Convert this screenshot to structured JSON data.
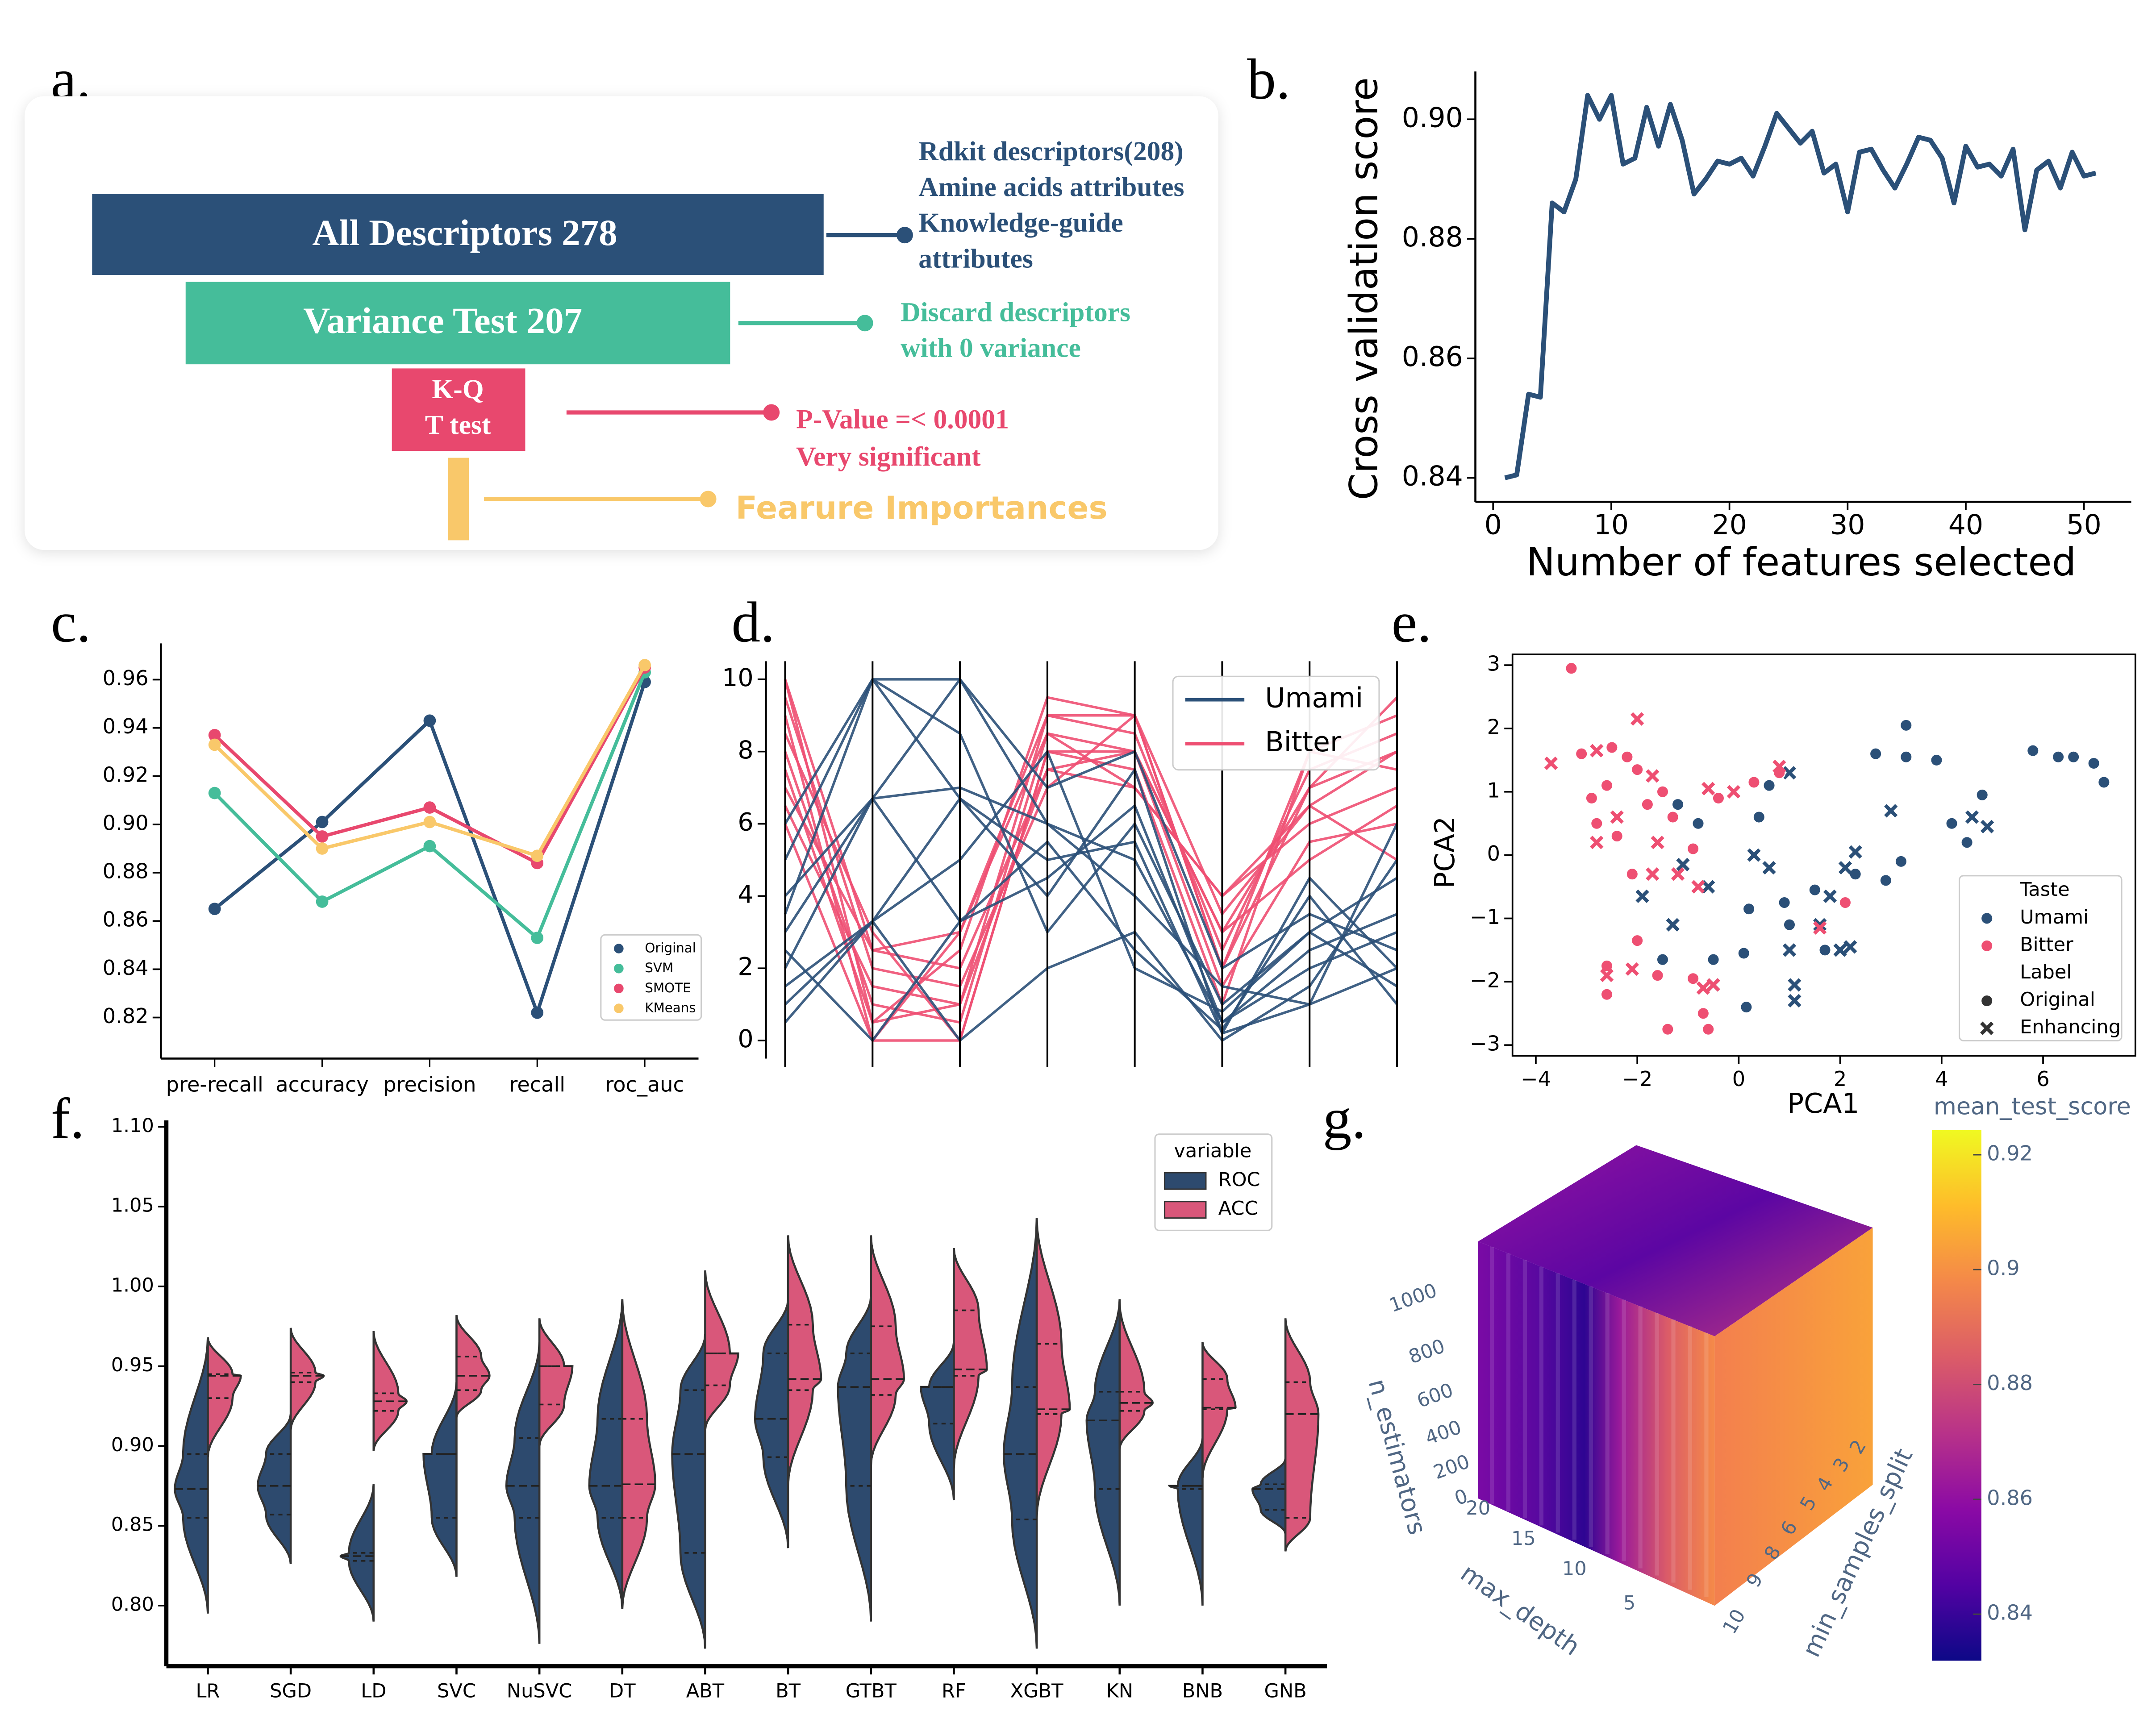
{
  "panel_labels": [
    "a.",
    "b.",
    "c.",
    "d.",
    "e.",
    "f.",
    "g."
  ],
  "diagram": {
    "stages": [
      {
        "label": "All Descriptors 278",
        "notes": [
          "Rdkit descriptors(208)",
          "Amine acids attributes",
          "Knowledge-guide",
          "attributes"
        ]
      },
      {
        "label": "Variance Test 207",
        "notes": [
          "Discard descriptors",
          "with 0 variance"
        ]
      },
      {
        "label_lines": [
          "K-Q",
          "T test"
        ],
        "notes": [
          "P-Value =< 0.0001",
          "Very significant"
        ]
      },
      {
        "notes": [
          "Fearure Importances"
        ]
      }
    ]
  },
  "chart_data": [
    {
      "type": "line",
      "xlabel": "Number of features selected",
      "ylabel": "Cross validation score",
      "color": "#2b5078",
      "x": [
        1,
        2,
        3,
        4,
        5,
        6,
        7,
        8,
        9,
        10,
        11,
        12,
        13,
        14,
        15,
        16,
        17,
        18,
        19,
        20,
        21,
        22,
        23,
        24,
        25,
        26,
        27,
        28,
        29,
        30,
        31,
        32,
        33,
        34,
        35,
        36,
        37,
        38,
        39,
        40,
        41,
        42,
        43,
        44,
        45,
        46,
        47,
        48,
        49,
        50,
        51
      ],
      "values": [
        0.84,
        0.8405,
        0.854,
        0.8535,
        0.886,
        0.8845,
        0.89,
        0.904,
        0.9,
        0.904,
        0.8925,
        0.8935,
        0.902,
        0.8955,
        0.9025,
        0.8965,
        0.8875,
        0.89,
        0.893,
        0.8925,
        0.8935,
        0.8905,
        0.8955,
        0.901,
        0.8985,
        0.896,
        0.898,
        0.891,
        0.8925,
        0.8845,
        0.8945,
        0.895,
        0.8915,
        0.8885,
        0.8925,
        0.897,
        0.8965,
        0.8935,
        0.886,
        0.8955,
        0.892,
        0.8925,
        0.8905,
        0.895,
        0.8815,
        0.8915,
        0.893,
        0.8885,
        0.8945,
        0.8905,
        0.891
      ],
      "xlim": [
        -1.5,
        54
      ],
      "ylim": [
        0.836,
        0.908
      ],
      "xticks": [
        0,
        10,
        20,
        30,
        40,
        50
      ],
      "yticks": [
        0.84,
        0.86,
        0.88,
        {
          "value": 0.9,
          "label": "0.90"
        }
      ]
    },
    {
      "type": "line",
      "categories": [
        "pre-recall",
        "accuracy",
        "precision",
        "recall",
        "roc_auc"
      ],
      "markers": true,
      "legend": "lower right",
      "series": [
        {
          "name": "Original",
          "color": "#2b5078",
          "values": [
            0.865,
            0.901,
            0.943,
            0.822,
            0.959
          ]
        },
        {
          "name": "SVM",
          "color": "#45bd9a",
          "values": [
            0.913,
            0.868,
            0.891,
            0.853,
            0.963
          ]
        },
        {
          "name": "SMOTE",
          "color": "#e8486e",
          "values": [
            0.937,
            0.895,
            0.907,
            0.884,
            0.965
          ]
        },
        {
          "name": "KMeans",
          "color": "#f9c86a",
          "values": [
            0.933,
            0.89,
            0.901,
            0.887,
            0.966
          ]
        }
      ],
      "ylim": [
        0.803,
        0.975
      ],
      "yticks": [
        0.82,
        0.84,
        0.86,
        0.88,
        {
          "value": 0.9,
          "label": "0.90"
        },
        0.92,
        0.94,
        0.96
      ]
    },
    {
      "type": "parallel",
      "categories": [
        null,
        null,
        null,
        null,
        null,
        null,
        null,
        null
      ],
      "legend": "upper right",
      "series": [
        {
          "name": "Umami",
          "color": "#2b5078",
          "values": [
            [
              3,
              6.7,
              10,
              6,
              5,
              0.5,
              2,
              3
            ],
            [
              1,
              3.3,
              6.7,
              4,
              7.5,
              0.2,
              1,
              2
            ],
            [
              5,
              10,
              8.5,
              3,
              6,
              1,
              3,
              4.5
            ],
            [
              2,
              6.7,
              3.3,
              5.5,
              2.5,
              0.3,
              4,
              1
            ],
            [
              0.5,
              3.3,
              0,
              2,
              3,
              0,
              1.5,
              5
            ],
            [
              6,
              10,
              10,
              7,
              8,
              2,
              3.5,
              2.5
            ],
            [
              2.5,
              0,
              3.3,
              4.5,
              6.5,
              0.5,
              2.5,
              3.5
            ],
            [
              4,
              6.7,
              7,
              6,
              4,
              1.5,
              1,
              6
            ],
            [
              1.5,
              3.3,
              5,
              8,
              2,
              0.8,
              3,
              1.5
            ],
            [
              3.5,
              10,
              6.7,
              5,
              5.5,
              0.2,
              4.5,
              2
            ]
          ]
        },
        {
          "name": "Bitter",
          "color": "#ee4f72",
          "values": [
            [
              9,
              0,
              0,
              8,
              8,
              3,
              7,
              8
            ],
            [
              10,
              0.5,
              1,
              9,
              9,
              2,
              8,
              9
            ],
            [
              7,
              2.5,
              2,
              7.5,
              7,
              4,
              6,
              7
            ],
            [
              8,
              1,
              0.5,
              8.5,
              8,
              1.5,
              5.5,
              6
            ],
            [
              6,
              0,
              3,
              9,
              8.5,
              2.5,
              7.5,
              8.5
            ],
            [
              9.5,
              2,
              1.5,
              7,
              9,
              3.5,
              6.5,
              5
            ],
            [
              8.5,
              3,
              0,
              8,
              7.5,
              1,
              8,
              7.5
            ],
            [
              7.5,
              0.5,
              2.5,
              9.5,
              9,
              2,
              7,
              9.5
            ],
            [
              6.5,
              1.5,
              1,
              7.5,
              8,
              3,
              5,
              6.5
            ],
            [
              10,
              2.5,
              3,
              8.5,
              7,
              4,
              6.5,
              8
            ]
          ]
        }
      ],
      "ylim": [
        -0.5,
        10.5
      ],
      "yticks": [
        0,
        2,
        4,
        6,
        8,
        10
      ]
    },
    {
      "type": "scatter",
      "xlabel": "PCA1",
      "ylabel": "PCA2",
      "legend": "lower right",
      "xlim": [
        -4.46,
        7.82
      ],
      "ylim": [
        -3.17,
        3.17
      ],
      "xticks": [
        {
          "value": -4,
          "label": "−4"
        },
        {
          "value": -2,
          "label": "−2"
        },
        0,
        2,
        4,
        6
      ],
      "yticks": [
        {
          "value": -3,
          "label": "−3"
        },
        {
          "value": -2,
          "label": "−2"
        },
        {
          "value": -1,
          "label": "−1"
        },
        0,
        1,
        2,
        3
      ],
      "hue_title": "Taste",
      "hue": [
        {
          "name": "Umami",
          "color": "#2b5078"
        },
        {
          "name": "Bitter",
          "color": "#ee4f72"
        }
      ],
      "style_title": "Label",
      "style": [
        {
          "name": "Original",
          "marker": "circle"
        },
        {
          "name": "Enhancing",
          "marker": "x"
        }
      ],
      "points": {
        "Umami": {
          "Original": {
            "x": [
              3.3,
              2.7,
              3.3,
              3.9,
              5.8,
              6.3,
              6.6,
              7.0,
              7.2,
              4.8,
              4.5,
              3.2,
              2.3,
              1.5,
              0.9,
              1.0,
              0.2,
              0.1,
              -0.5,
              0.15,
              -1.5,
              -0.8,
              0.4,
              0.6,
              -1.2,
              2.9,
              1.7,
              4.2
            ],
            "y": [
              2.05,
              1.6,
              1.55,
              1.5,
              1.65,
              1.55,
              1.55,
              1.45,
              1.15,
              0.95,
              0.2,
              -0.1,
              -0.3,
              -0.55,
              -0.75,
              -1.1,
              -0.85,
              -1.55,
              -1.65,
              -2.4,
              -1.65,
              0.5,
              0.6,
              1.1,
              0.8,
              -0.4,
              -1.5,
              0.5
            ]
          },
          "Enhancing": {
            "x": [
              4.6,
              4.9,
              3.0,
              2.3,
              2.1,
              1.8,
              2.2,
              2.0,
              1.6,
              1.0,
              0.6,
              -0.6,
              -1.3,
              -0.5,
              1.1,
              1.1,
              -1.9,
              -1.1,
              0.3,
              1.0
            ],
            "y": [
              0.6,
              0.45,
              0.7,
              0.05,
              -0.2,
              -0.65,
              -1.45,
              -1.5,
              -1.1,
              -1.5,
              -0.2,
              -0.5,
              -1.1,
              -2.05,
              -2.3,
              -2.05,
              -0.65,
              -0.15,
              0.0,
              1.3
            ]
          }
        },
        "Bitter": {
          "Original": {
            "x": [
              -3.3,
              -3.1,
              -2.5,
              -2.2,
              -2.0,
              -1.5,
              -2.6,
              -2.9,
              -2.4,
              -2.8,
              -2.1,
              -1.3,
              -0.9,
              -0.4,
              0.3,
              0.8,
              -2.0,
              -2.6,
              -2.6,
              -1.6,
              -1.4,
              -0.7,
              -0.6,
              -0.9,
              2.1,
              -1.8
            ],
            "y": [
              2.95,
              1.6,
              1.7,
              1.55,
              1.35,
              1.0,
              1.1,
              0.9,
              0.3,
              0.5,
              -0.3,
              0.6,
              0.1,
              0.9,
              1.15,
              1.3,
              -1.35,
              -1.75,
              -2.2,
              -1.9,
              -2.75,
              -2.5,
              -2.75,
              -1.95,
              -0.75,
              0.8
            ]
          },
          "Enhancing": {
            "x": [
              -3.7,
              -2.8,
              -2.0,
              -1.7,
              -0.6,
              -0.1,
              0.8,
              -2.8,
              -2.4,
              -1.6,
              -1.7,
              -0.8,
              -2.6,
              -2.1,
              -0.7,
              -0.5,
              1.6,
              -1.2
            ],
            "y": [
              1.45,
              1.65,
              2.15,
              1.25,
              1.05,
              1.0,
              1.4,
              0.2,
              0.6,
              0.2,
              -0.3,
              -0.5,
              -1.9,
              -1.8,
              -2.1,
              -2.05,
              -1.15,
              -0.3
            ]
          }
        }
      }
    },
    {
      "type": "violin",
      "legend_title": "variable",
      "legend": "upper right",
      "categories": [
        "LR",
        "SGD",
        "LD",
        "SVC",
        "NuSVC",
        "DT",
        "ABT",
        "BT",
        "GTBT",
        "RF",
        "XGBT",
        "KN",
        "BNB",
        "GNB"
      ],
      "series": [
        {
          "name": "ROC",
          "color": "#2d4a6e",
          "values": [
            [
              0.795,
              0.855,
              0.873,
              0.895,
              0.968
            ],
            [
              0.826,
              0.857,
              0.875,
              0.895,
              0.92
            ],
            [
              0.79,
              0.828,
              0.831,
              0.833,
              0.876
            ],
            [
              0.818,
              0.855,
              0.895,
              0.895,
              0.94
            ],
            [
              0.776,
              0.855,
              0.875,
              0.905,
              0.965
            ],
            [
              0.798,
              0.855,
              0.875,
              0.917,
              0.992
            ],
            [
              0.773,
              0.833,
              0.895,
              0.935,
              0.97
            ],
            [
              0.836,
              0.893,
              0.917,
              0.958,
              0.992
            ],
            [
              0.79,
              0.875,
              0.937,
              0.958,
              0.994
            ],
            [
              0.866,
              0.914,
              0.937,
              0.937,
              0.965
            ],
            [
              0.773,
              0.854,
              0.895,
              0.937,
              1.043
            ],
            [
              0.8,
              0.873,
              0.916,
              0.934,
              0.992
            ],
            [
              0.8,
              0.873,
              0.875,
              0.875,
              0.905
            ],
            [
              0.845,
              0.86,
              0.873,
              0.876,
              0.892
            ]
          ]
        },
        {
          "name": "ACC",
          "color": "#d9577a",
          "values": [
            [
              0.893,
              0.93,
              0.944,
              0.945,
              0.968
            ],
            [
              0.91,
              0.94,
              0.944,
              0.946,
              0.974
            ],
            [
              0.897,
              0.922,
              0.928,
              0.933,
              0.972
            ],
            [
              0.918,
              0.935,
              0.944,
              0.956,
              0.982
            ],
            [
              0.9,
              0.926,
              0.95,
              0.95,
              0.98
            ],
            [
              0.798,
              0.855,
              0.876,
              0.917,
              0.992
            ],
            [
              0.91,
              0.938,
              0.958,
              0.958,
              1.01
            ],
            [
              0.875,
              0.935,
              0.942,
              0.976,
              1.032
            ],
            [
              0.888,
              0.932,
              0.942,
              0.975,
              1.032
            ],
            [
              0.886,
              0.944,
              0.948,
              0.985,
              1.024
            ],
            [
              0.855,
              0.92,
              0.923,
              0.964,
              1.043
            ],
            [
              0.898,
              0.922,
              0.927,
              0.934,
              0.99
            ],
            [
              0.88,
              0.923,
              0.924,
              0.942,
              0.965
            ],
            [
              0.834,
              0.855,
              0.92,
              0.94,
              0.98
            ]
          ]
        }
      ],
      "ylim": [
        0.762,
        1.104
      ],
      "yticks": [
        {
          "value": 0.8,
          "label": "0.80"
        },
        0.85,
        {
          "value": 0.9,
          "label": "0.90"
        },
        0.95,
        {
          "value": 1.0,
          "label": "1.00"
        },
        1.05,
        {
          "value": 1.1,
          "label": "1.10"
        }
      ]
    },
    {
      "type": "scatter3d",
      "xlabel": "max_depth",
      "ylabel": "min_samples_split",
      "zlabel": "n_estimators",
      "xticks": [
        5,
        10,
        15,
        20
      ],
      "yticks": [
        2,
        3,
        4,
        5,
        6,
        8,
        9,
        10
      ],
      "zticks": [
        0,
        200,
        400,
        600,
        800,
        1000
      ],
      "colorbar": {
        "title": "mean_test_score",
        "lim": [
          0.8319,
          0.9243
        ],
        "ticks": [
          0.84,
          0.86,
          0.88,
          0.9,
          0.92
        ],
        "colorscale": [
          "#0d0887",
          "#5302a3",
          "#8b0aa5",
          "#b83289",
          "#db5c68",
          "#f48849",
          "#febc2a",
          "#f0f921"
        ]
      }
    }
  ]
}
